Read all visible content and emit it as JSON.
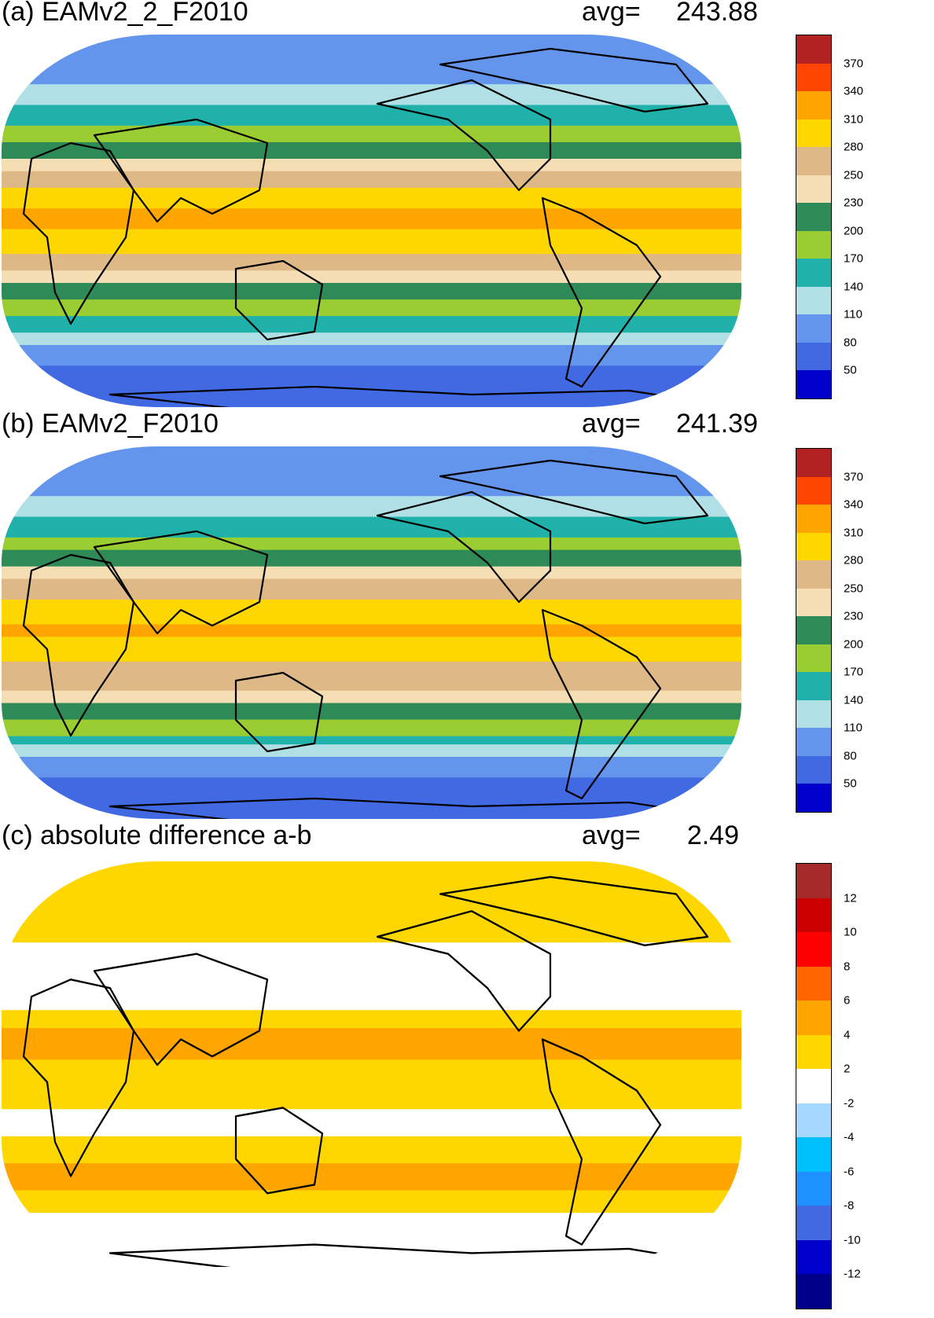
{
  "chart_data": [
    {
      "type": "heatmap",
      "title": "(a) EAMv2_2_F2010",
      "avg_label": "avg=",
      "avg_value": "243.88",
      "projection": "Robinson",
      "colorbar": {
        "labels": [
          "370",
          "340",
          "310",
          "280",
          "250",
          "230",
          "200",
          "170",
          "140",
          "110",
          "80",
          "50"
        ],
        "colors": [
          "#b22222",
          "#ff4500",
          "#ffa500",
          "#ffd700",
          "#deb887",
          "#f5deb3",
          "#2e8b57",
          "#9acd32",
          "#20b2aa",
          "#b0e0e6",
          "#6495ed",
          "#4169e1",
          "#0000cd"
        ]
      },
      "zonal_bands": [
        {
          "lat": 80,
          "value": 80
        },
        {
          "lat": 65,
          "value": 110
        },
        {
          "lat": 55,
          "value": 140
        },
        {
          "lat": 45,
          "value": 170
        },
        {
          "lat": 38,
          "value": 200
        },
        {
          "lat": 30,
          "value": 230
        },
        {
          "lat": 22,
          "value": 260
        },
        {
          "lat": 10,
          "value": 300
        },
        {
          "lat": 0,
          "value": 320
        },
        {
          "lat": -12,
          "value": 290
        },
        {
          "lat": -28,
          "value": 240
        },
        {
          "lat": -38,
          "value": 200
        },
        {
          "lat": -46,
          "value": 170
        },
        {
          "lat": -54,
          "value": 140
        },
        {
          "lat": -62,
          "value": 100
        },
        {
          "lat": -75,
          "value": 70
        }
      ]
    },
    {
      "type": "heatmap",
      "title": "(b) EAMv2_F2010",
      "avg_label": "avg=",
      "avg_value": "241.39",
      "projection": "Robinson",
      "colorbar": {
        "labels": [
          "370",
          "340",
          "310",
          "280",
          "250",
          "230",
          "200",
          "170",
          "140",
          "110",
          "80",
          "50"
        ],
        "colors": [
          "#b22222",
          "#ff4500",
          "#ffa500",
          "#ffd700",
          "#deb887",
          "#f5deb3",
          "#2e8b57",
          "#9acd32",
          "#20b2aa",
          "#b0e0e6",
          "#6495ed",
          "#4169e1",
          "#0000cd"
        ]
      },
      "zonal_bands": [
        {
          "lat": 80,
          "value": 80
        },
        {
          "lat": 65,
          "value": 110
        },
        {
          "lat": 55,
          "value": 140
        },
        {
          "lat": 45,
          "value": 175
        },
        {
          "lat": 38,
          "value": 210
        },
        {
          "lat": 30,
          "value": 240
        },
        {
          "lat": 22,
          "value": 265
        },
        {
          "lat": 10,
          "value": 300
        },
        {
          "lat": 0,
          "value": 315
        },
        {
          "lat": -12,
          "value": 285
        },
        {
          "lat": -28,
          "value": 250
        },
        {
          "lat": -38,
          "value": 215
        },
        {
          "lat": -46,
          "value": 185
        },
        {
          "lat": -54,
          "value": 145
        },
        {
          "lat": -62,
          "value": 100
        },
        {
          "lat": -75,
          "value": 70
        }
      ]
    },
    {
      "type": "heatmap",
      "title": "(c) absolute difference a-b",
      "avg_label": "avg=",
      "avg_value": "2.49",
      "projection": "Robinson",
      "colorbar": {
        "labels": [
          "12",
          "10",
          "8",
          "6",
          "4",
          "2",
          "-2",
          "-4",
          "-6",
          "-8",
          "-10",
          "-12"
        ],
        "colors": [
          "#a52a2a",
          "#cc0000",
          "#ff0000",
          "#ff6600",
          "#ffa500",
          "#ffd700",
          "#ffffff",
          "#a6d8ff",
          "#00bfff",
          "#1e90ff",
          "#4169e1",
          "#0000cd",
          "#00008b"
        ]
      },
      "zonal_bands": [
        {
          "lat": 75,
          "value": 3
        },
        {
          "lat": 60,
          "value": 2.5
        },
        {
          "lat": 45,
          "value": 1
        },
        {
          "lat": 25,
          "value": 1.5
        },
        {
          "lat": 8,
          "value": 6
        },
        {
          "lat": 0,
          "value": 3
        },
        {
          "lat": -10,
          "value": 4
        },
        {
          "lat": -25,
          "value": 1
        },
        {
          "lat": -45,
          "value": 4
        },
        {
          "lat": -55,
          "value": 4
        },
        {
          "lat": -70,
          "value": 1
        }
      ]
    }
  ]
}
